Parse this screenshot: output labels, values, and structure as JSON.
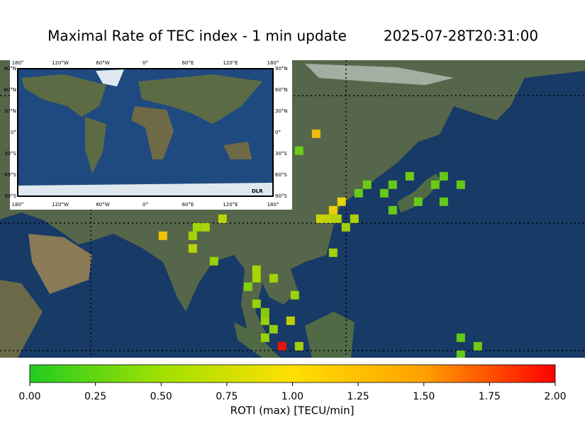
{
  "chart_data": {
    "type": "grid-map",
    "title": "Maximal Rate of TEC index - 1 min update",
    "subtitle": "2025-07-28T20:31:00",
    "xlim": [
      38.7,
      176.2
    ],
    "ylim": [
      -1.7,
      68.3
    ],
    "x": [
      113,
      109,
      135,
      143,
      131,
      141,
      147,
      125,
      123,
      129,
      137,
      143,
      119,
      131,
      117,
      114,
      116,
      118,
      122,
      91,
      87,
      85,
      120,
      77,
      84,
      84,
      117,
      89,
      99,
      103,
      99,
      97,
      108,
      99,
      101,
      101,
      107,
      103,
      147,
      151,
      105,
      109,
      147,
      101
    ],
    "y": [
      51,
      47,
      41,
      41,
      39,
      39,
      39,
      39,
      37,
      37,
      35,
      35,
      35,
      33,
      33,
      31,
      31,
      31,
      31,
      31,
      29,
      29,
      29,
      27,
      27,
      24,
      23,
      21,
      19,
      17,
      17,
      15,
      13,
      11,
      9,
      7,
      7,
      5,
      3,
      1,
      1,
      1,
      -1,
      3
    ],
    "values": [
      1.2,
      0.3,
      0.35,
      0.3,
      0.3,
      0.3,
      0.3,
      0.3,
      0.3,
      0.3,
      0.3,
      0.3,
      0.95,
      0.3,
      1.05,
      0.8,
      0.7,
      0.7,
      0.65,
      0.7,
      0.6,
      0.55,
      0.6,
      1.15,
      0.55,
      0.7,
      0.6,
      0.5,
      0.6,
      0.55,
      0.6,
      0.4,
      0.55,
      0.5,
      0.45,
      0.55,
      0.75,
      0.5,
      0.3,
      0.35,
      1.95,
      0.6,
      0.3,
      0.5
    ],
    "colors": [
      "#22cc22",
      "#a0e000",
      "#ffe000",
      "#ffa000",
      "#ff0000"
    ],
    "clim": [
      0,
      2
    ],
    "colorbar_ticks": [
      {
        "value": 0,
        "label": "0.00"
      },
      {
        "value": 0.25,
        "label": "0.25"
      },
      {
        "value": 0.5,
        "label": "0.50"
      },
      {
        "value": 0.75,
        "label": "0.75"
      },
      {
        "value": 1,
        "label": "1.00"
      },
      {
        "value": 1.25,
        "label": "1.25"
      },
      {
        "value": 1.5,
        "label": "1.50"
      },
      {
        "value": 1.75,
        "label": "1.75"
      },
      {
        "value": 2,
        "label": "2.00"
      }
    ],
    "colorbar_label": "ROTI (max) [TECU/min]",
    "inset": {
      "lon_labels": [
        "180°",
        "120°W",
        "60°W",
        "0°",
        "60°E",
        "120°E",
        "180°"
      ],
      "lat_labels": [
        "90°N",
        "60°N",
        "30°N",
        "0°",
        "30°S",
        "60°S",
        "90°S"
      ],
      "logo": "DLR"
    }
  }
}
